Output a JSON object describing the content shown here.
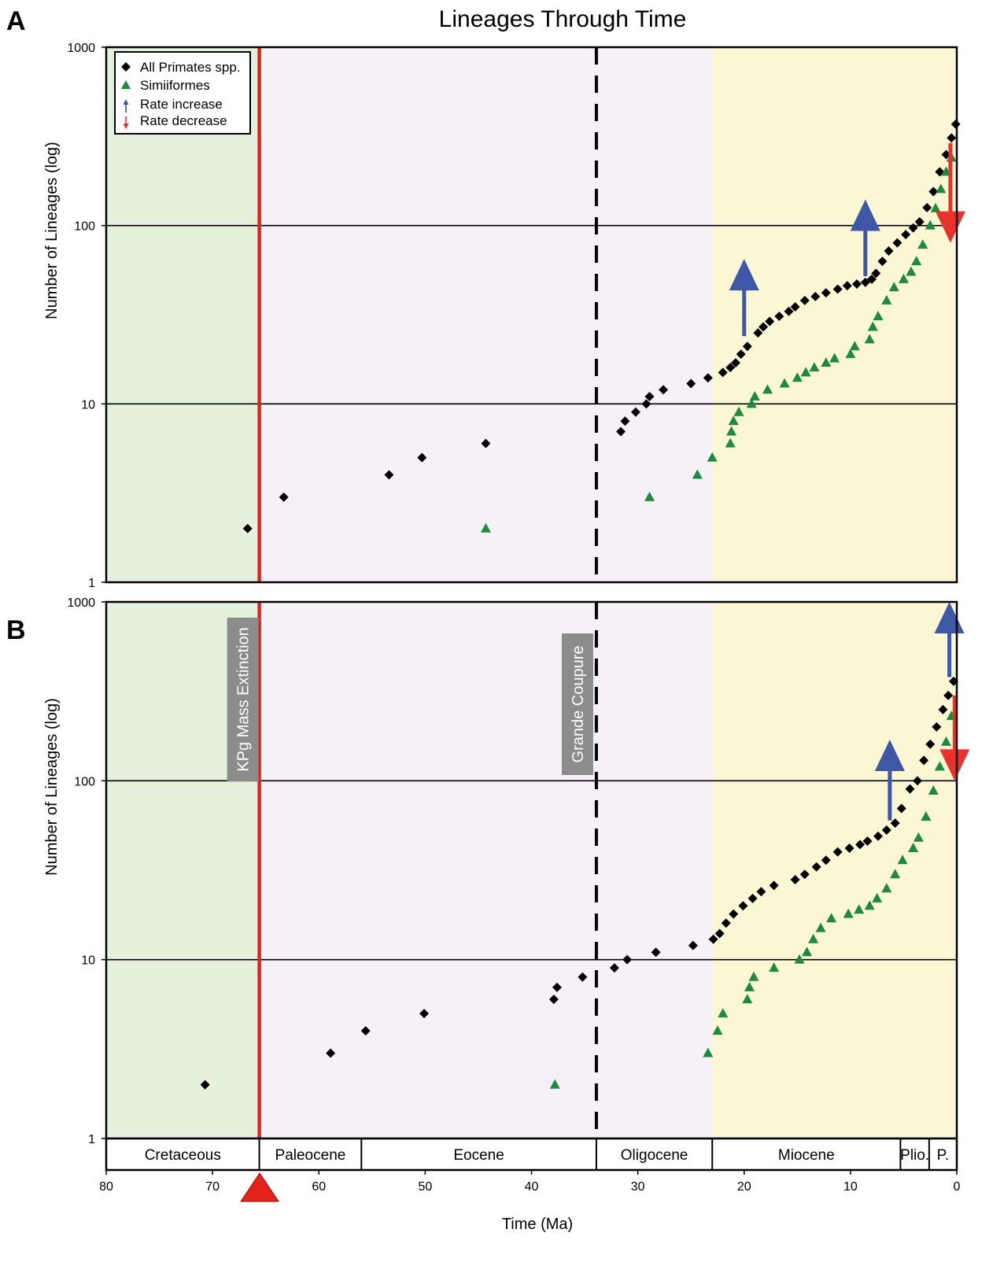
{
  "figure": {
    "title": "Lineages Through Time",
    "panel_labels": [
      "A",
      "B"
    ],
    "x_axis_label": "Time (Ma)",
    "y_axis_label": "Number of Lineages (log)",
    "legend": {
      "items": [
        {
          "label": "All Primates spp.",
          "marker": "diamond",
          "color": "#000000"
        },
        {
          "label": "Simiiformes",
          "marker": "triangle",
          "color": "#1f8a3c"
        },
        {
          "label": "Rate increase",
          "marker": "arrow-up",
          "color": "#3e57a6"
        },
        {
          "label": "Rate decrease",
          "marker": "arrow-down",
          "color": "#e8322b"
        }
      ]
    },
    "events": [
      {
        "label": "KPg Mass Extinction",
        "time_ma": 65.6,
        "style": "solid",
        "color": "#e2231a"
      },
      {
        "label": "Grande Coupure",
        "time_ma": 33.9,
        "style": "dashed",
        "color": "#000000"
      }
    ],
    "epochs": [
      {
        "label": "Cretaceous",
        "start": 80,
        "end": 65.6
      },
      {
        "label": "Paleocene",
        "start": 65.6,
        "end": 56
      },
      {
        "label": "Eocene",
        "start": 56,
        "end": 33.9
      },
      {
        "label": "Oligocene",
        "start": 33.9,
        "end": 23
      },
      {
        "label": "Miocene",
        "start": 23,
        "end": 5.3
      },
      {
        "label": "Plio.",
        "start": 5.3,
        "end": 2.6
      },
      {
        "label": "P.",
        "start": 2.6,
        "end": 0
      }
    ],
    "background_colors": {
      "cretaceous": "#e5f0dd",
      "paleogene": "#f6f1f6",
      "neogene": "#fbf7d4"
    }
  },
  "chart_data": [
    {
      "panel": "A",
      "type": "scatter",
      "x_ticks": [
        80,
        70,
        60,
        50,
        40,
        30,
        20,
        10,
        0
      ],
      "x_reversed": true,
      "xlim": [
        80,
        0
      ],
      "ylim": [
        1,
        1000
      ],
      "y_scale": "log",
      "y_ticks": [
        1,
        10,
        100,
        1000
      ],
      "gridlines_y": [
        10,
        100
      ],
      "series": [
        {
          "name": "All Primates spp.",
          "marker": "diamond",
          "color": "#000000",
          "x": [
            66.7,
            63.3,
            53.4,
            50.3,
            44.3,
            31.6,
            31.2,
            30.2,
            29.2,
            28.9,
            27.6,
            25.0,
            23.4,
            22.0,
            21.3,
            20.8,
            20.3,
            19.7,
            18.7,
            18.2,
            17.6,
            16.7,
            15.8,
            15.2,
            14.3,
            13.3,
            12.3,
            11.2,
            10.3,
            9.4,
            8.6,
            8.0,
            7.6,
            7.0,
            6.4,
            5.6,
            4.8,
            4.1,
            3.5,
            2.8,
            2.2,
            1.6,
            1.0,
            0.5,
            0.1
          ],
          "y": [
            2,
            3,
            4,
            5,
            6,
            7,
            8,
            9,
            10,
            11,
            12,
            13,
            14,
            15,
            16,
            17,
            19,
            21,
            25,
            27,
            29,
            31,
            33,
            35,
            38,
            40,
            42,
            44,
            46,
            47,
            48,
            50,
            54,
            63,
            72,
            80,
            89,
            97,
            105,
            126,
            155,
            200,
            250,
            310,
            370
          ]
        },
        {
          "name": "Simiiformes",
          "marker": "triangle",
          "color": "#1f8a3c",
          "x": [
            44.3,
            28.9,
            24.4,
            23.0,
            21.3,
            21.2,
            21.0,
            20.5,
            19.3,
            19.0,
            17.8,
            16.2,
            15.0,
            14.2,
            13.4,
            12.3,
            11.5,
            10.0,
            9.6,
            8.2,
            7.9,
            7.4,
            6.6,
            5.9,
            5.0,
            4.3,
            3.8,
            3.2,
            2.5,
            2.0,
            1.5,
            1.0,
            0.5
          ],
          "y": [
            2,
            3,
            4,
            5,
            6,
            7,
            8,
            9,
            10,
            11,
            12,
            13,
            14,
            15,
            16,
            17,
            18,
            19,
            21,
            23,
            27,
            31,
            38,
            45,
            50,
            55,
            63,
            78,
            100,
            125,
            160,
            200,
            240
          ]
        }
      ],
      "annotations": [
        {
          "type": "rate increase",
          "x": 20.0,
          "y_from": 24,
          "y_to": 65
        },
        {
          "type": "rate increase",
          "x": 8.6,
          "y_from": 52,
          "y_to": 140
        },
        {
          "type": "rate decrease",
          "x": 0.6,
          "y_from": 290,
          "y_to": 80
        }
      ]
    },
    {
      "panel": "B",
      "type": "scatter",
      "x_ticks": [
        80,
        70,
        60,
        50,
        40,
        30,
        20,
        10,
        0
      ],
      "x_reversed": true,
      "xlim": [
        80,
        0
      ],
      "ylim": [
        1,
        1000
      ],
      "y_scale": "log",
      "y_ticks": [
        1,
        10,
        100,
        1000
      ],
      "gridlines_y": [
        10,
        100
      ],
      "series": [
        {
          "name": "All Primates spp.",
          "marker": "diamond",
          "color": "#000000",
          "x": [
            70.7,
            58.9,
            55.6,
            50.1,
            37.9,
            37.6,
            35.2,
            32.2,
            31.0,
            28.3,
            24.8,
            22.9,
            22.3,
            21.7,
            21.0,
            20.1,
            19.2,
            18.4,
            17.2,
            15.2,
            14.3,
            13.2,
            12.3,
            11.2,
            10.1,
            9.1,
            8.4,
            7.4,
            6.6,
            5.8,
            5.2,
            4.4,
            3.7,
            3.1,
            2.5,
            1.9,
            1.3,
            0.8,
            0.3
          ],
          "y": [
            2,
            3,
            4,
            5,
            6,
            7,
            8,
            9,
            10,
            11,
            12,
            13,
            14,
            16,
            18,
            20,
            22,
            24,
            26,
            28,
            30,
            33,
            36,
            40,
            42,
            44,
            46,
            49,
            53,
            58,
            70,
            90,
            100,
            130,
            160,
            200,
            250,
            300,
            360
          ]
        },
        {
          "name": "Simiiformes",
          "marker": "triangle",
          "color": "#1f8a3c",
          "x": [
            37.8,
            23.4,
            22.5,
            22.0,
            19.7,
            19.5,
            19.1,
            17.2,
            14.8,
            14.1,
            13.5,
            12.8,
            11.8,
            10.2,
            9.2,
            8.2,
            7.5,
            6.6,
            5.8,
            5.1,
            4.1,
            3.6,
            2.9,
            2.2,
            1.6,
            1.0,
            0.5
          ],
          "y": [
            2,
            3,
            4,
            5,
            6,
            7,
            8,
            9,
            10,
            11,
            13,
            15,
            17,
            18,
            19,
            20,
            22,
            25,
            30,
            36,
            42,
            48,
            63,
            88,
            120,
            165,
            230
          ]
        }
      ],
      "annotations": [
        {
          "type": "rate increase",
          "x": 6.3,
          "y_from": 60,
          "y_to": 170
        },
        {
          "type": "rate increase",
          "x": 0.7,
          "y_from": 380,
          "y_to": 1000
        },
        {
          "type": "rate decrease",
          "x": 0.2,
          "y_from": 300,
          "y_to": 100
        }
      ]
    }
  ]
}
